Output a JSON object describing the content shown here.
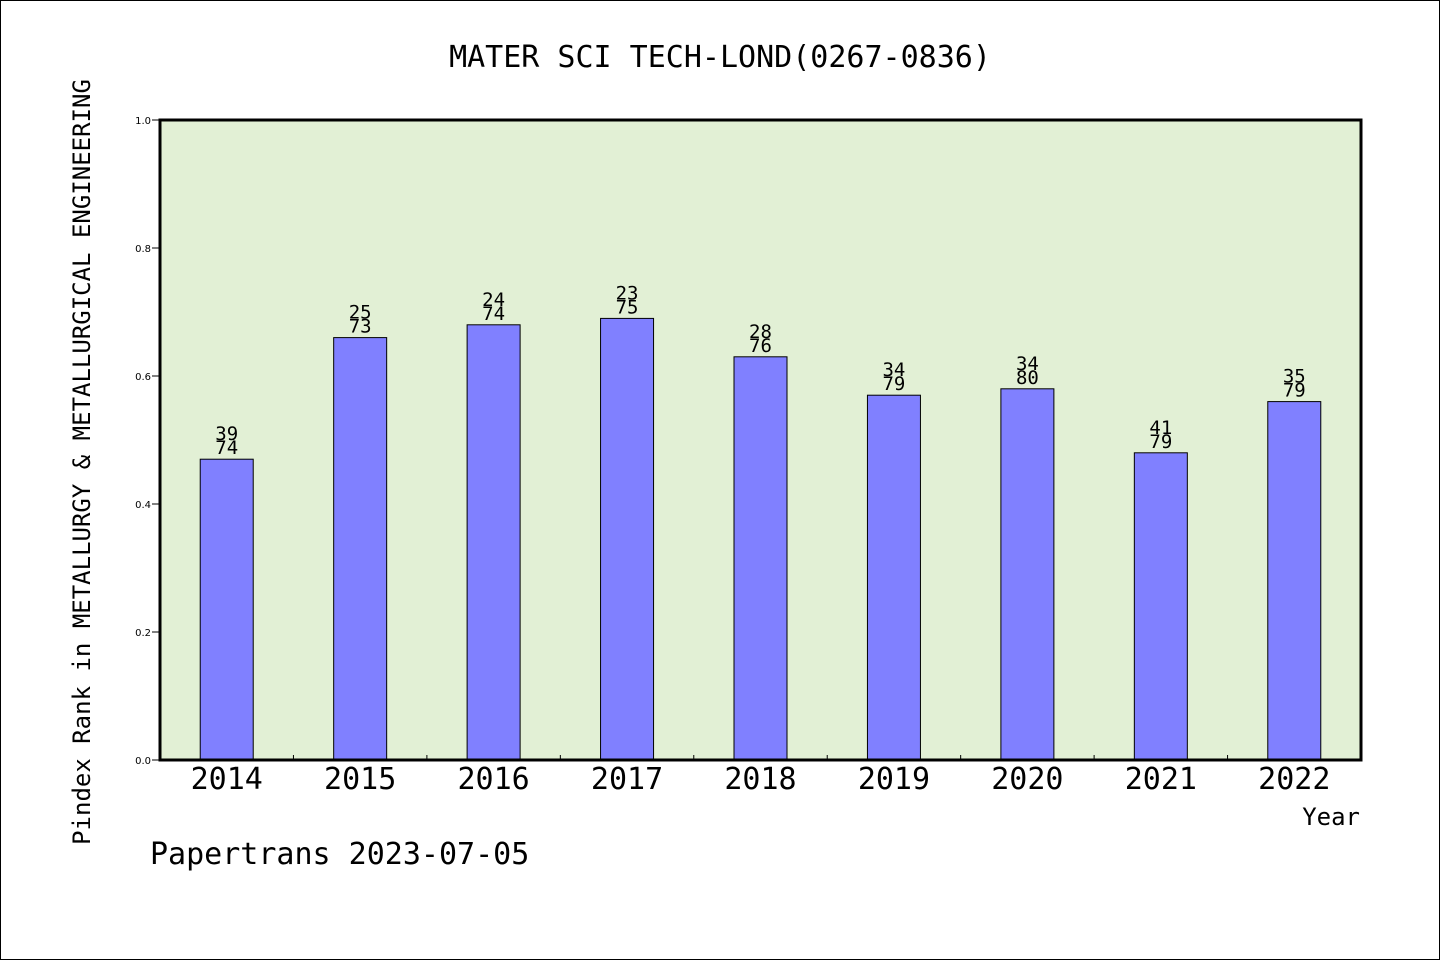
{
  "chart_data": {
    "type": "bar",
    "title": "MATER SCI TECH-LOND(0267-0836)",
    "xlabel": "Year",
    "ylabel": "Pindex Rank in METALLURGY & METALLURGICAL ENGINEERING",
    "ylim": [
      0,
      1.0
    ],
    "yticks": [
      0.0,
      0.2,
      0.4,
      0.6,
      0.8,
      1.0
    ],
    "ytick_labels": [
      "0.0",
      "0.2",
      "0.4",
      "0.6",
      "0.8",
      "1.0"
    ],
    "categories": [
      "2014",
      "2015",
      "2016",
      "2017",
      "2018",
      "2019",
      "2020",
      "2021",
      "2022"
    ],
    "values": [
      0.47,
      0.66,
      0.68,
      0.69,
      0.63,
      0.57,
      0.58,
      0.48,
      0.56
    ],
    "rank_labels": [
      "39",
      "25",
      "24",
      "23",
      "28",
      "34",
      "34",
      "41",
      "35"
    ],
    "total_labels": [
      "74",
      "73",
      "74",
      "75",
      "76",
      "79",
      "80",
      "79",
      "79"
    ],
    "grid": false,
    "legend": "none",
    "colors": {
      "bar_fill": "#8080ff",
      "plot_background": "#e2f0d5",
      "axis": "#000000"
    }
  },
  "footer": "Papertrans 2023-07-05"
}
